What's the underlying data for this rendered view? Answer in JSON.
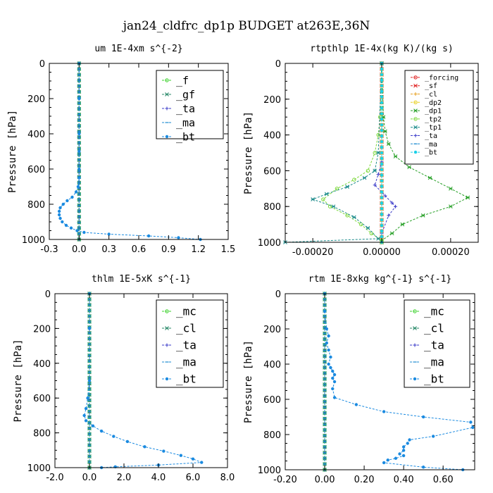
{
  "figure_title": "jan24_cldfrc_dp1p  BUDGET at263E,36N",
  "chart_data": [
    {
      "id": "um",
      "type": "line",
      "title": "um  1E-4xm s^{-2}",
      "ylabel": "Pressure [hPa]",
      "xlim": [
        -0.3,
        1.5
      ],
      "ylim": [
        1000,
        0
      ],
      "xticks": [
        -0.3,
        0.0,
        0.3,
        0.6,
        0.9,
        1.2,
        1.5
      ],
      "xtick_labels": [
        "-0.3",
        "0.0",
        "0.3",
        "0.6",
        "0.9",
        "1.2",
        "1.5"
      ],
      "yticks": [
        0,
        200,
        400,
        600,
        800,
        1000
      ],
      "legend": "top-right",
      "series": [
        {
          "name": "_f",
          "color": "#39d12a",
          "marker": "circle",
          "x": [
            0,
            0,
            0
          ],
          "y": [
            0,
            500,
            1000
          ]
        },
        {
          "name": "_gf",
          "color": "#2a8a6a",
          "marker": "star",
          "x": [
            0,
            0,
            0
          ],
          "y": [
            0,
            500,
            1000
          ]
        },
        {
          "name": "_ta",
          "color": "#3a3ac8",
          "marker": "plus",
          "x": [
            0,
            0,
            0
          ],
          "y": [
            0,
            500,
            1000
          ]
        },
        {
          "name": "_ma",
          "color": "#1a8ad0",
          "marker": "dash",
          "x": [
            0,
            0,
            0
          ],
          "y": [
            0,
            500,
            1000
          ]
        },
        {
          "name": "_bt",
          "color": "#1a8ae0",
          "marker": "dot",
          "x": [
            0.0,
            0.0,
            0.0,
            0.0,
            0.0,
            0.0,
            -0.01,
            -0.03,
            -0.07,
            -0.12,
            -0.16,
            -0.19,
            -0.2,
            -0.2,
            -0.19,
            -0.17,
            -0.13,
            -0.08,
            -0.02,
            0.05,
            0.3,
            0.7,
            1.0,
            1.22
          ],
          "y": [
            0,
            200,
            400,
            500,
            600,
            650,
            700,
            730,
            760,
            780,
            800,
            820,
            840,
            860,
            880,
            900,
            920,
            935,
            950,
            960,
            970,
            980,
            990,
            1000
          ]
        }
      ]
    },
    {
      "id": "rtpthlp",
      "type": "line",
      "title": "rtpthlp  1E-4x(kg K)/(kg s)",
      "ylabel": "Pressure [hPa]",
      "xlim": [
        -0.00028,
        0.00028
      ],
      "ylim": [
        1000,
        0
      ],
      "xticks": [
        -0.0002,
        0.0,
        0.0002
      ],
      "xtick_labels": [
        "-0.00020",
        "0.00000",
        "0.00020"
      ],
      "yticks": [
        0,
        200,
        400,
        600,
        800,
        1000
      ],
      "legend": "top-right",
      "series": [
        {
          "name": "_forcing",
          "color": "#e02020",
          "marker": "circle",
          "x": [
            0,
            0,
            0
          ],
          "y": [
            0,
            500,
            1000
          ]
        },
        {
          "name": "_sf",
          "color": "#e02020",
          "marker": "star",
          "x": [
            0,
            0,
            0
          ],
          "y": [
            0,
            500,
            1000
          ]
        },
        {
          "name": "_cl",
          "color": "#e8a020",
          "marker": "plus",
          "x": [
            0,
            0,
            0
          ],
          "y": [
            0,
            500,
            1000
          ]
        },
        {
          "name": "_dp2",
          "color": "#e8d020",
          "marker": "circle",
          "x": [
            0,
            0,
            0
          ],
          "y": [
            0,
            500,
            1000
          ]
        },
        {
          "name": "_dp1",
          "color": "#28a028",
          "marker": "star",
          "x": [
            0.0,
            5e-06,
            1e-05,
            2e-05,
            4e-05,
            8e-05,
            0.00014,
            0.0002,
            0.00025,
            0.0002,
            0.00012,
            6e-05,
            3e-05,
            0.0,
            0.0
          ],
          "y": [
            0,
            300,
            380,
            450,
            520,
            580,
            640,
            700,
            750,
            800,
            850,
            900,
            950,
            990,
            1000
          ]
        },
        {
          "name": "_tp2",
          "color": "#7cd83a",
          "marker": "circle",
          "x": [
            0.0,
            -5e-06,
            -1e-05,
            -2e-05,
            -4e-05,
            -8e-05,
            -0.00013,
            -0.00017,
            -0.00015,
            -0.0001,
            -6e-05,
            -3e-05,
            0.0,
            0.0
          ],
          "y": [
            0,
            300,
            400,
            500,
            600,
            650,
            700,
            760,
            800,
            850,
            900,
            950,
            990,
            1000
          ]
        },
        {
          "name": "_tp1",
          "color": "#1a8a8a",
          "marker": "star",
          "x": [
            0.0,
            -1e-05,
            -2e-05,
            -5e-05,
            -0.0001,
            -0.00016,
            -0.0002,
            -0.00014,
            -8e-05,
            -4e-05,
            -1e-05,
            -0.00028
          ],
          "y": [
            0,
            500,
            600,
            640,
            690,
            730,
            760,
            800,
            860,
            920,
            980,
            1000
          ]
        },
        {
          "name": "_ta",
          "color": "#3a3ac8",
          "marker": "plus",
          "x": [
            0.0,
            0.0,
            -1e-05,
            -2e-05,
            1e-05,
            3e-05,
            4e-05,
            2e-05,
            0.0,
            0.0
          ],
          "y": [
            0,
            550,
            620,
            680,
            740,
            780,
            800,
            850,
            950,
            1000
          ]
        },
        {
          "name": "_ma",
          "color": "#1a8ad0",
          "marker": "dash",
          "x": [
            0,
            0,
            0
          ],
          "y": [
            0,
            500,
            1000
          ]
        },
        {
          "name": "_bt",
          "color": "#1ad0e8",
          "marker": "dot",
          "x": [
            0,
            0,
            0
          ],
          "y": [
            0,
            500,
            1000
          ]
        }
      ]
    },
    {
      "id": "thlm",
      "type": "line",
      "title": "thlm  1E-5xK s^{-1}",
      "ylabel": "Pressure [hPa]",
      "xlim": [
        -2.0,
        8.0
      ],
      "ylim": [
        1000,
        0
      ],
      "xticks": [
        -2.0,
        0.0,
        2.0,
        4.0,
        6.0,
        8.0
      ],
      "xtick_labels": [
        "-2.0",
        "0.0",
        "2.0",
        "4.0",
        "6.0",
        "8.0"
      ],
      "yticks": [
        0,
        200,
        400,
        600,
        800,
        1000
      ],
      "legend": "top-right",
      "series": [
        {
          "name": "_mc",
          "color": "#39d12a",
          "marker": "circle",
          "x": [
            0,
            0,
            0
          ],
          "y": [
            0,
            500,
            1000
          ]
        },
        {
          "name": "_cl",
          "color": "#2a8a6a",
          "marker": "star",
          "x": [
            0,
            0,
            0
          ],
          "y": [
            0,
            500,
            1000
          ]
        },
        {
          "name": "_ta",
          "color": "#3a3ac8",
          "marker": "plus",
          "x": [
            0,
            0,
            0
          ],
          "y": [
            0,
            500,
            1000
          ]
        },
        {
          "name": "_ma",
          "color": "#1a8ad0",
          "marker": "dash",
          "x": [
            0,
            0,
            0
          ],
          "y": [
            0,
            500,
            1000
          ]
        },
        {
          "name": "_bt",
          "color": "#1a8ae0",
          "marker": "dot",
          "x": [
            0.0,
            0.0,
            0.0,
            -0.1,
            -0.2,
            -0.3,
            -0.2,
            0.2,
            0.7,
            1.4,
            2.2,
            3.2,
            4.3,
            5.3,
            6.0,
            6.5,
            4.0,
            1.5,
            0.7
          ],
          "y": [
            0,
            200,
            500,
            600,
            660,
            700,
            730,
            760,
            790,
            820,
            850,
            880,
            905,
            930,
            950,
            970,
            985,
            995,
            1000
          ]
        }
      ]
    },
    {
      "id": "rtm",
      "type": "line",
      "title": "rtm  1E-8xkg kg^{-1} s^{-1}",
      "ylabel": "Pressure [hPa]",
      "xlim": [
        -0.2,
        0.76
      ],
      "ylim": [
        1000,
        0
      ],
      "xticks": [
        -0.2,
        0.0,
        0.2,
        0.4,
        0.6
      ],
      "xtick_labels": [
        "-0.20",
        "0.00",
        "0.20",
        "0.40",
        "0.60"
      ],
      "yticks": [
        0,
        200,
        400,
        600,
        800,
        1000
      ],
      "legend": "top-right",
      "series": [
        {
          "name": "_mc",
          "color": "#39d12a",
          "marker": "circle",
          "x": [
            0,
            0,
            0
          ],
          "y": [
            0,
            500,
            1000
          ]
        },
        {
          "name": "_cl",
          "color": "#2a8a6a",
          "marker": "star",
          "x": [
            0,
            0,
            0
          ],
          "y": [
            0,
            500,
            1000
          ]
        },
        {
          "name": "_ta",
          "color": "#3a3ac8",
          "marker": "plus",
          "x": [
            0,
            0,
            0
          ],
          "y": [
            0,
            500,
            1000
          ]
        },
        {
          "name": "_ma",
          "color": "#1a8ad0",
          "marker": "dash",
          "x": [
            0,
            0,
            0
          ],
          "y": [
            0,
            500,
            1000
          ]
        },
        {
          "name": "_bt",
          "color": "#1a8ae0",
          "marker": "dot",
          "x": [
            0.0,
            0.0,
            0.01,
            0.02,
            0.01,
            0.02,
            0.03,
            0.02,
            0.03,
            0.04,
            0.05,
            0.04,
            0.05,
            0.04,
            0.05,
            0.16,
            0.3,
            0.5,
            0.74,
            0.75,
            0.55,
            0.43,
            0.42,
            0.4,
            0.4,
            0.38,
            0.4,
            0.36,
            0.32,
            0.3,
            0.5,
            0.7
          ],
          "y": [
            0,
            100,
            200,
            240,
            280,
            320,
            360,
            400,
            420,
            440,
            460,
            480,
            500,
            540,
            590,
            630,
            670,
            700,
            730,
            760,
            810,
            830,
            850,
            870,
            890,
            910,
            920,
            935,
            945,
            960,
            985,
            1000
          ]
        }
      ]
    }
  ]
}
